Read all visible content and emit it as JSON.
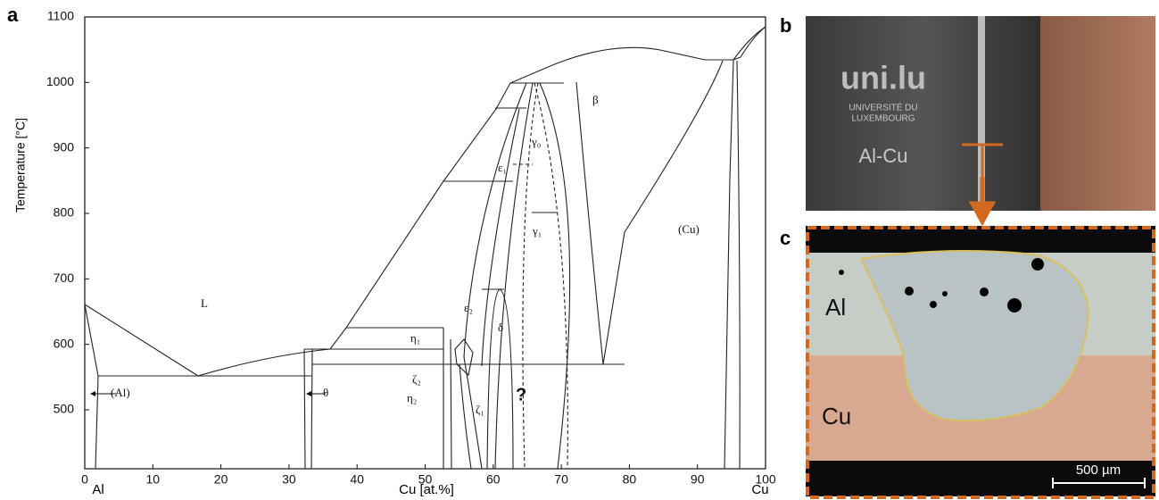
{
  "figure": {
    "panel_a": {
      "label": "a",
      "x_axis_label": "Cu [at.%]",
      "y_axis_label": "Temperature [°C]",
      "xlim": [
        0,
        100
      ],
      "ylim": [
        410,
        1100
      ],
      "xticks": [
        0,
        10,
        20,
        30,
        40,
        50,
        60,
        70,
        80,
        90,
        100
      ],
      "yticks": [
        500,
        600,
        700,
        800,
        900,
        1000,
        1100
      ],
      "x_end_labels": [
        "Al",
        "Cu"
      ],
      "phase_labels": [
        "L",
        "(Al)",
        "θ",
        "η₁",
        "η₂",
        "ζ₂",
        "ζ₁",
        "ε₁",
        "ε₂",
        "δ",
        "γ₀",
        "γ₁",
        "β",
        "(Cu)",
        "?"
      ]
    },
    "panel_b": {
      "label": "b",
      "logo": "uni.lu",
      "logo_caption": [
        "UNIVERSITÉ DU",
        "LUXEMBOURG"
      ],
      "sample_text": "Al-Cu"
    },
    "panel_c": {
      "label": "c",
      "region_labels": [
        "Al",
        "Cu"
      ],
      "scale_bar": "500 µm"
    }
  }
}
